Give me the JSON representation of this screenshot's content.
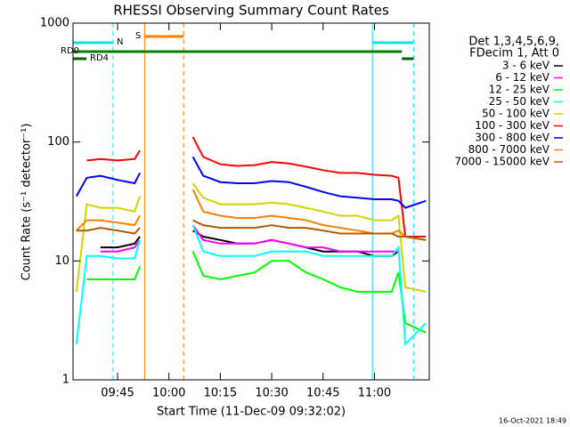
{
  "chart_data": {
    "type": "line",
    "title": "RHESSI Observing Summary Count Rates",
    "x_label": "Start Time (11-Dec-09 09:32:02)",
    "y_label": "Count Rate (s⁻¹ detector⁻¹)",
    "timestamp": "16-Oct-2021 18:49",
    "legend_header": [
      "Det 1,3,4,5,6,9,",
      "FDecim 1, Att 0"
    ],
    "legend_position": "right",
    "log_y": true,
    "xlim": [
      572,
      676
    ],
    "xticks": [
      {
        "value": 585,
        "label": "09:45"
      },
      {
        "value": 600,
        "label": "10:00"
      },
      {
        "value": 615,
        "label": "10:15"
      },
      {
        "value": 630,
        "label": "10:30"
      },
      {
        "value": 645,
        "label": "10:45"
      },
      {
        "value": 660,
        "label": "11:00"
      }
    ],
    "ylim": [
      1,
      1000
    ],
    "yticks": [
      1,
      10,
      100,
      1000
    ],
    "x": [
      573,
      576,
      580,
      585,
      590,
      591.5,
      592,
      607,
      610,
      615,
      620,
      625,
      630,
      635,
      640,
      645,
      650,
      655,
      660,
      665,
      667,
      669,
      675
    ],
    "series": [
      {
        "name": "3 - 6 keV",
        "color": "#000000",
        "values": [
          null,
          null,
          13,
          13,
          14,
          16,
          null,
          18,
          16,
          15,
          14,
          14,
          15,
          14,
          13,
          12,
          12,
          12,
          11,
          11,
          12,
          null,
          null
        ]
      },
      {
        "name": "6 - 12 keV",
        "color": "#ff00ff",
        "values": [
          null,
          null,
          12,
          12,
          13,
          15,
          null,
          20,
          15,
          14,
          14,
          14,
          15,
          14,
          13,
          13,
          12,
          12,
          12,
          12,
          12,
          null,
          null
        ]
      },
      {
        "name": "12 - 25 keV",
        "color": "#00ff00",
        "values": [
          null,
          7,
          7,
          7,
          7,
          9,
          null,
          12,
          7.5,
          7,
          7.5,
          8,
          10,
          10,
          8,
          7,
          6,
          5.5,
          5.5,
          5.5,
          8,
          3,
          2.5
        ]
      },
      {
        "name": "25 - 50 keV",
        "color": "#00ffff",
        "values": [
          2,
          11,
          11,
          10.5,
          10.5,
          15,
          null,
          20,
          12,
          11,
          11,
          11,
          12,
          12,
          12,
          11,
          11,
          11,
          11,
          11,
          13,
          2,
          3
        ]
      },
      {
        "name": "50 - 100 keV",
        "color": "#d4d400",
        "values": [
          5.5,
          30,
          28,
          28,
          26,
          35,
          null,
          45,
          34,
          30,
          30,
          30,
          31,
          30,
          28,
          26,
          24,
          24,
          22,
          22,
          24,
          6,
          5.5
        ]
      },
      {
        "name": "100 - 300 keV",
        "color": "#ff0000",
        "values": [
          null,
          70,
          72,
          70,
          72,
          85,
          null,
          110,
          75,
          65,
          63,
          64,
          68,
          66,
          62,
          58,
          55,
          55,
          53,
          52,
          50,
          16,
          16
        ]
      },
      {
        "name": "300 - 800 keV",
        "color": "#0000ff",
        "values": [
          35,
          50,
          52,
          48,
          45,
          55,
          null,
          75,
          52,
          46,
          45,
          45,
          47,
          46,
          42,
          38,
          35,
          34,
          33,
          33,
          32,
          28,
          32
        ]
      },
      {
        "name": "800 - 7000 keV",
        "color": "#ff8000",
        "values": [
          18,
          22,
          22,
          21,
          20,
          24,
          null,
          40,
          26,
          24,
          23,
          23,
          24,
          23,
          22,
          20,
          19,
          18,
          17,
          17,
          18,
          16,
          15
        ]
      },
      {
        "name": "7000 - 15000 keV",
        "color": "#b05a00",
        "values": [
          18,
          18,
          19,
          18,
          17,
          19,
          null,
          22,
          20,
          19,
          19,
          19,
          20,
          19,
          19,
          18,
          17,
          17,
          17,
          17,
          16,
          16,
          15
        ]
      }
    ],
    "flags": [
      {
        "label": "S",
        "color": "#ff8000",
        "intervals": [
          [
            592.9,
            604.3
          ]
        ],
        "vlines": true
      },
      {
        "label": "N",
        "color": "#00e5ee",
        "intervals": [
          [
            572,
            583.7
          ],
          [
            659.4,
            671.4
          ]
        ],
        "vlines": true
      },
      {
        "label": "RD0",
        "color": "#008000",
        "intervals": [
          [
            572,
            668
          ]
        ],
        "vlines": false
      },
      {
        "label": "RD4",
        "color": "#006400",
        "intervals": [
          [
            572,
            575.9
          ],
          [
            668,
            671.4
          ]
        ],
        "vlines": false
      }
    ]
  }
}
